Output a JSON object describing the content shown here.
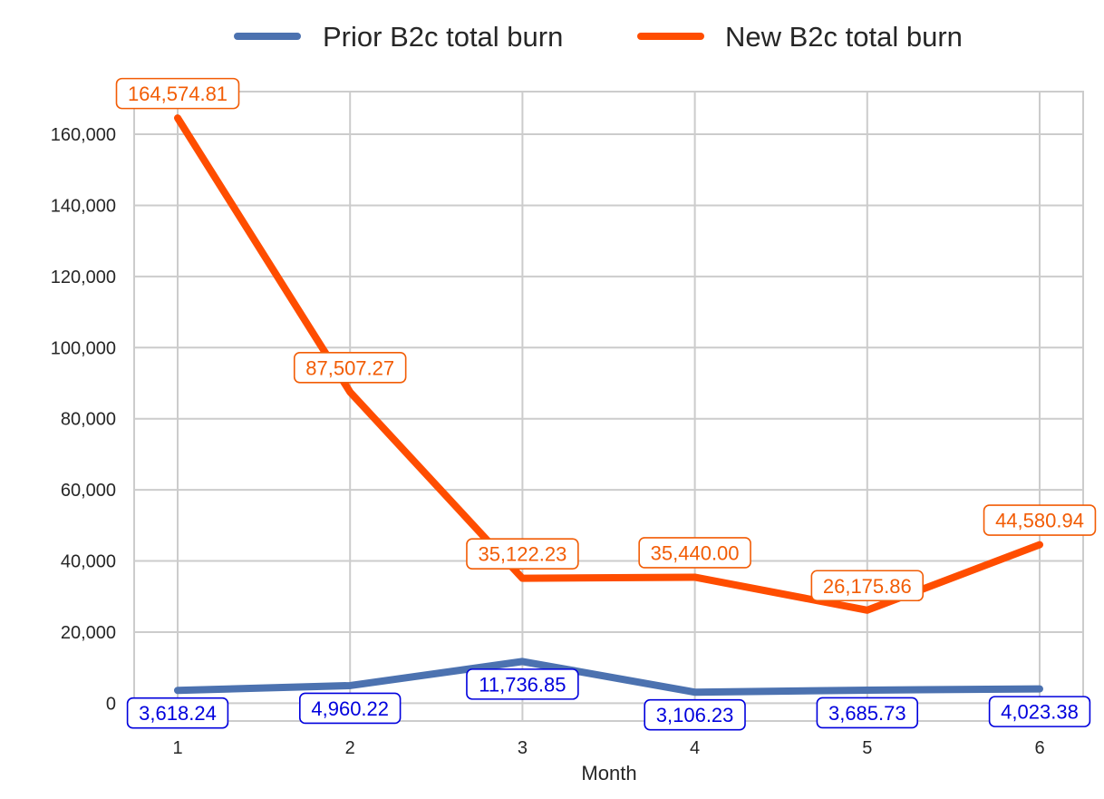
{
  "chart_data": {
    "type": "line",
    "title": "",
    "xlabel": "Month",
    "ylabel": "",
    "x": [
      1,
      2,
      3,
      4,
      5,
      6
    ],
    "x_tick_labels": [
      "1",
      "2",
      "3",
      "4",
      "5",
      "6"
    ],
    "ylim": [
      -5000,
      172000
    ],
    "y_ticks": [
      0,
      20000,
      40000,
      60000,
      80000,
      100000,
      120000,
      140000,
      160000
    ],
    "y_tick_labels": [
      "0",
      "20,000",
      "40,000",
      "60,000",
      "80,000",
      "100,000",
      "120,000",
      "140,000",
      "160,000"
    ],
    "grid": true,
    "legend_position": "top-center",
    "series": [
      {
        "name": "Prior B2c total burn",
        "color": "#4c72b0",
        "label_color": "#0000dd",
        "label_position": "below",
        "values": [
          3618.24,
          4960.22,
          11736.85,
          3106.23,
          3685.73,
          4023.38
        ],
        "labels": [
          "3,618.24",
          "4,960.22",
          "11,736.85",
          "3,106.23",
          "3,685.73",
          "4,023.38"
        ]
      },
      {
        "name": "New B2c total burn",
        "color": "#ff4d00",
        "label_color": "#f25c05",
        "label_position": "above",
        "values": [
          164574.81,
          87507.27,
          35122.23,
          35440.0,
          26175.86,
          44580.94
        ],
        "labels": [
          "164,574.81",
          "87,507.27",
          "35,122.23",
          "35,440.00",
          "26,175.86",
          "44,580.94"
        ]
      }
    ]
  }
}
